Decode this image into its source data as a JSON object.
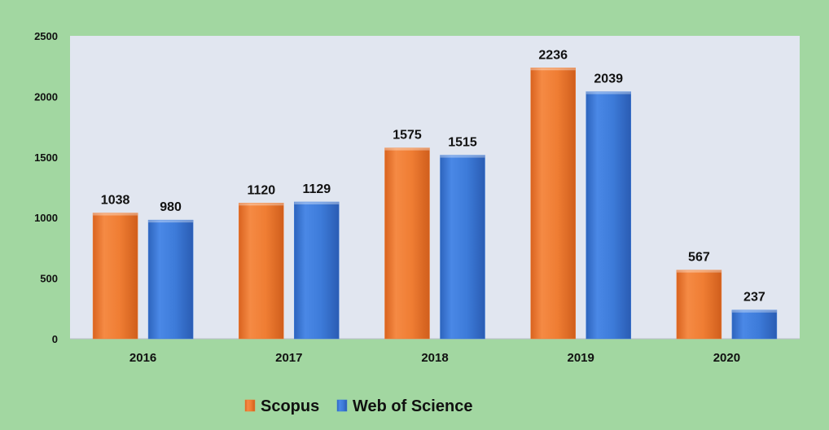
{
  "chart_data": {
    "type": "bar",
    "categories": [
      "2016",
      "2017",
      "2018",
      "2019",
      "2020"
    ],
    "series": [
      {
        "name": "Scopus",
        "values": [
          1038,
          1120,
          1575,
          2236,
          567
        ],
        "color": "#ef7d33"
      },
      {
        "name": "Web of Science",
        "values": [
          980,
          1129,
          1515,
          2039,
          237
        ],
        "color": "#3d7bd9"
      }
    ],
    "ylim": [
      0,
      2500
    ],
    "yticks": [
      0,
      500,
      1000,
      1500,
      2000,
      2500
    ],
    "grid": false,
    "legend_position": "bottom",
    "plot_background": "#e1e6f0",
    "page_background": "#a2d7a1"
  }
}
